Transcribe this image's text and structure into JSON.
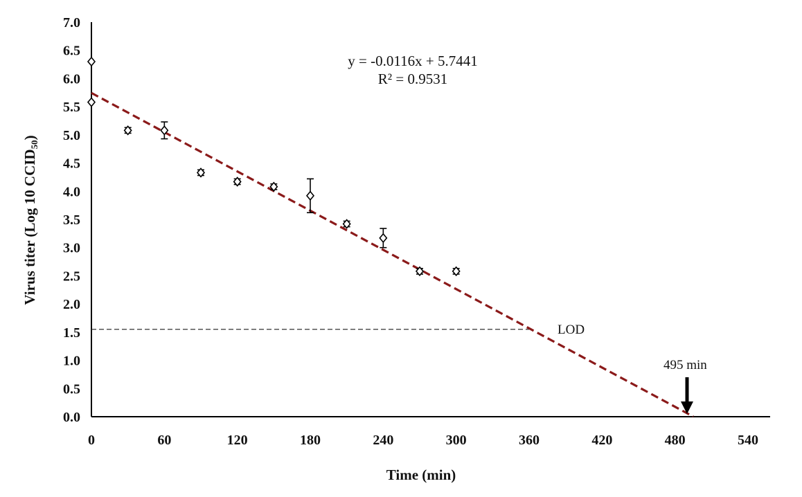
{
  "chart_data": {
    "type": "scatter",
    "xlabel": "Time (min)",
    "ylabel": "Virus titer (Log 10 CCID",
    "ylabel_subscript": "50",
    "ylabel_close": ")",
    "xlim": [
      0,
      540
    ],
    "ylim": [
      0,
      7.0
    ],
    "xticks": [
      "0",
      "60",
      "120",
      "180",
      "240",
      "300",
      "360",
      "420",
      "480",
      "540"
    ],
    "yticks": [
      "0.0",
      "0.5",
      "1.0",
      "1.5",
      "2.0",
      "2.5",
      "3.0",
      "3.5",
      "4.0",
      "4.5",
      "5.0",
      "5.5",
      "6.0",
      "6.5",
      "7.0"
    ],
    "grid": false,
    "points": [
      {
        "x": 0,
        "y": 6.3,
        "err": 0
      },
      {
        "x": 0,
        "y": 5.58,
        "err": 0
      },
      {
        "x": 30,
        "y": 5.08,
        "err": 0.05
      },
      {
        "x": 60,
        "y": 5.08,
        "err": 0.15
      },
      {
        "x": 90,
        "y": 4.33,
        "err": 0.05
      },
      {
        "x": 120,
        "y": 4.17,
        "err": 0.05
      },
      {
        "x": 150,
        "y": 4.08,
        "err": 0.05
      },
      {
        "x": 180,
        "y": 3.92,
        "err": 0.3
      },
      {
        "x": 210,
        "y": 3.42,
        "err": 0.05
      },
      {
        "x": 240,
        "y": 3.17,
        "err": 0.17
      },
      {
        "x": 270,
        "y": 2.58,
        "err": 0.05
      },
      {
        "x": 300,
        "y": 2.58,
        "err": 0.05
      }
    ],
    "trendline": {
      "slope": -0.0116,
      "intercept": 5.7441,
      "x_start": 0,
      "x_end": 495,
      "color": "#8b1a1a",
      "equation": "y = -0.0116x + 5.7441",
      "r_squared": "R² = 0.9531"
    },
    "lod": {
      "label": "LOD",
      "y": 1.55,
      "x_end": 360
    },
    "endpoint": {
      "label": "495 min",
      "x": 495
    }
  }
}
